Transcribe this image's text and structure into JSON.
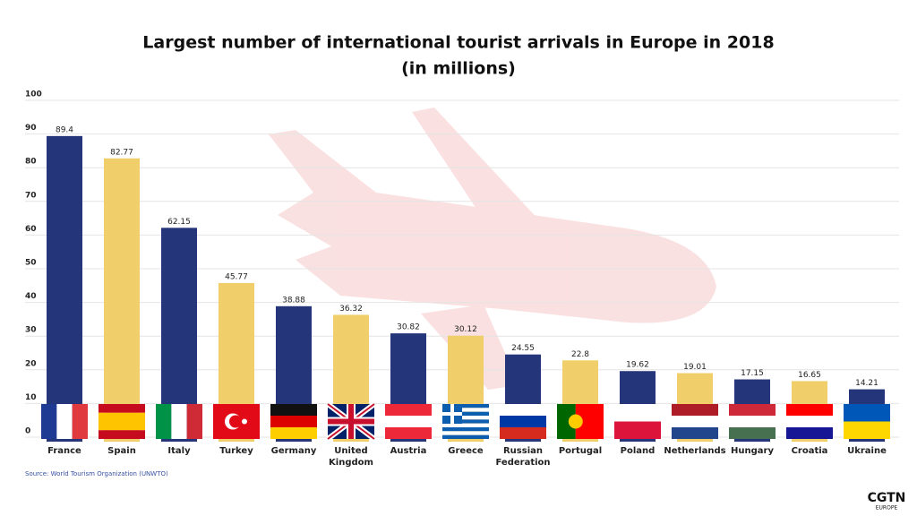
{
  "chart_data": {
    "type": "bar",
    "title": "Largest number of international tourist arrivals in Europe in 2018",
    "subtitle": "(in millions)",
    "categories": [
      "France",
      "Spain",
      "Italy",
      "Turkey",
      "Germany",
      "United Kingdom",
      "Austria",
      "Greece",
      "Russian Federation",
      "Portugal",
      "Poland",
      "Netherlands",
      "Hungary",
      "Croatia",
      "Ukraine"
    ],
    "values": [
      89.4,
      82.77,
      62.15,
      45.77,
      38.88,
      36.32,
      30.82,
      30.12,
      24.55,
      22.8,
      19.62,
      19.01,
      17.15,
      16.65,
      14.21
    ],
    "colors": [
      "#24357a",
      "#f0cf6a",
      "#24357a",
      "#f0cf6a",
      "#24357a",
      "#f0cf6a",
      "#24357a",
      "#f0cf6a",
      "#24357a",
      "#f0cf6a",
      "#24357a",
      "#f0cf6a",
      "#24357a",
      "#f0cf6a",
      "#24357a"
    ],
    "ylim": [
      0,
      100
    ],
    "yticks": [
      0,
      10,
      20,
      30,
      40,
      50,
      60,
      70,
      80,
      90,
      100
    ],
    "grid": true,
    "source": "Source: World Tourism Organization (UNWTO)",
    "logo": "CGTN",
    "logo_sub": "EUROPE"
  }
}
